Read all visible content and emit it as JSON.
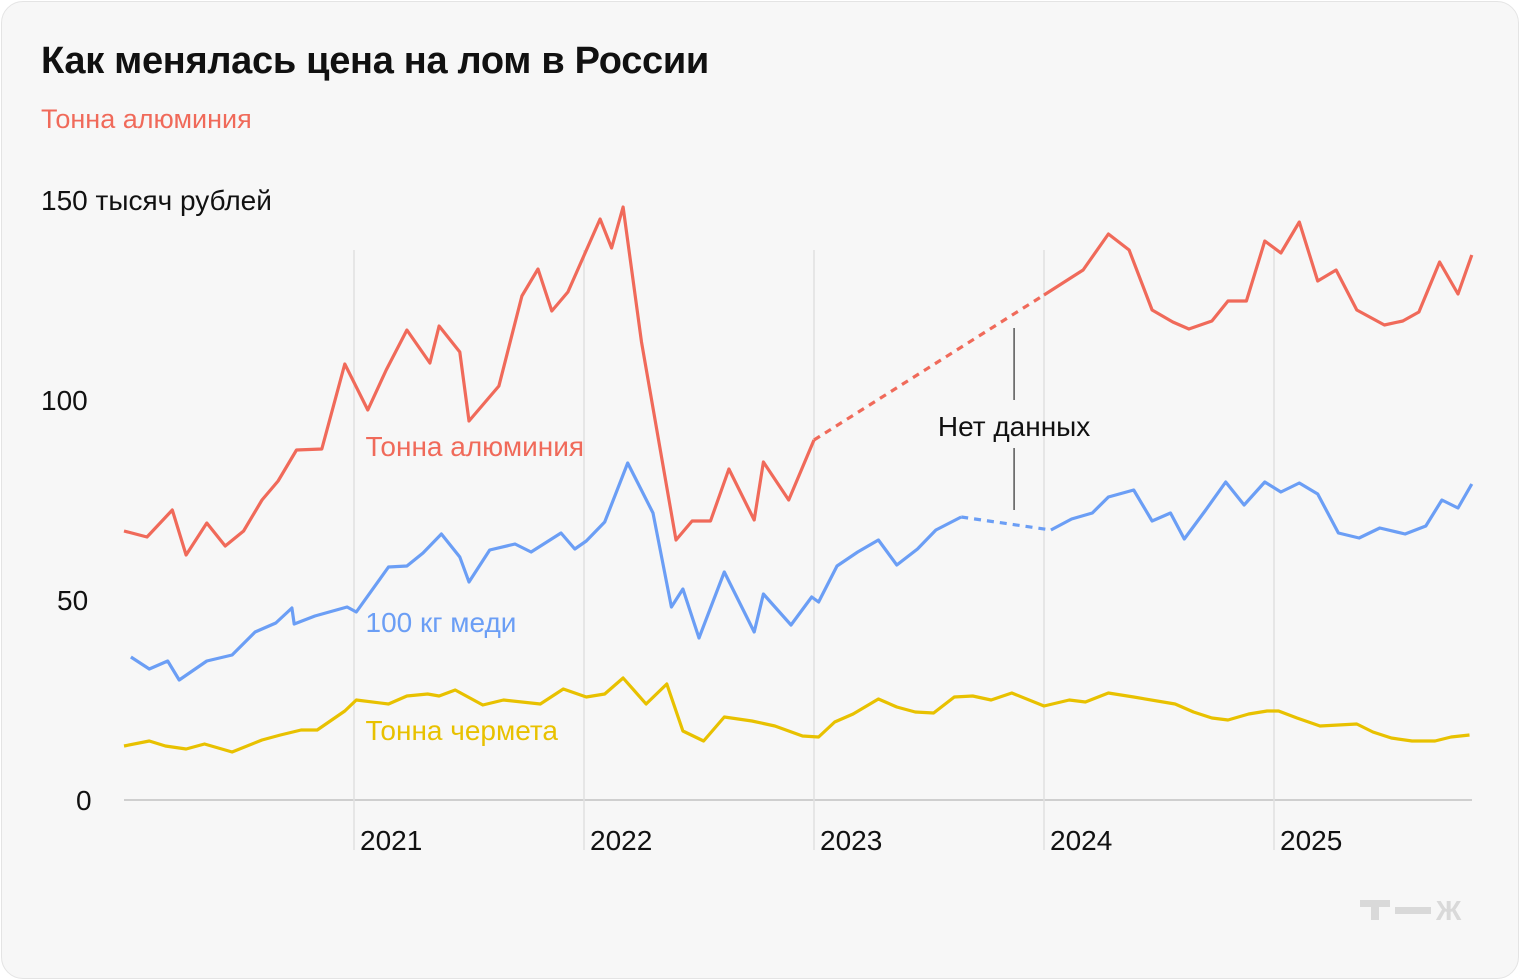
{
  "title": "Как менялась цена на лом в России",
  "subtitle": "Тонна алюминия",
  "logo": "Т—Ж",
  "chart_data": {
    "type": "line",
    "title": "Как менялась цена на лом в России",
    "ylabel": "150 тысяч рублей",
    "ylim": [
      0,
      150
    ],
    "xlim": [
      2020.0,
      2025.86
    ],
    "y_ticks": [
      {
        "value": 0,
        "label": "0"
      },
      {
        "value": 50,
        "label": "50"
      },
      {
        "value": 100,
        "label": "100"
      },
      {
        "value": 150,
        "label": "150 тысяч рублей"
      }
    ],
    "x_ticks": [
      {
        "value": 2021,
        "label": "2021"
      },
      {
        "value": 2022,
        "label": "2022"
      },
      {
        "value": 2023,
        "label": "2023"
      },
      {
        "value": 2024,
        "label": "2024"
      },
      {
        "value": 2025,
        "label": "2025"
      }
    ],
    "grid": "vertical",
    "annotation": {
      "text": "Нет данных",
      "x": 2023.87
    },
    "series": [
      {
        "name": "Тонна алюминия",
        "color": "#f06a5a",
        "label_at": [
          2021.05,
          86
        ],
        "segments": [
          [
            [
              2020.0,
              67.25
            ],
            [
              2020.1,
              65.75
            ],
            [
              2020.21,
              72.5
            ],
            [
              2020.27,
              61.25
            ],
            [
              2020.36,
              69.25
            ],
            [
              2020.44,
              63.5
            ],
            [
              2020.52,
              67.25
            ],
            [
              2020.6,
              75
            ],
            [
              2020.67,
              79.75
            ],
            [
              2020.75,
              87.5
            ],
            [
              2020.86,
              87.75
            ],
            [
              2020.96,
              109
            ],
            [
              2021.06,
              97.5
            ],
            [
              2021.14,
              107.5
            ],
            [
              2021.23,
              117.5
            ],
            [
              2021.33,
              109.25
            ],
            [
              2021.37,
              118.5
            ],
            [
              2021.46,
              112
            ],
            [
              2021.5,
              94.75
            ],
            [
              2021.63,
              103.5
            ],
            [
              2021.73,
              126
            ],
            [
              2021.8,
              132.75
            ],
            [
              2021.86,
              122.25
            ],
            [
              2021.93,
              127
            ],
            [
              2022.07,
              145.25
            ],
            [
              2022.12,
              138
            ],
            [
              2022.17,
              148.25
            ],
            [
              2022.25,
              114.5
            ],
            [
              2022.4,
              65
            ],
            [
              2022.47,
              69.75
            ],
            [
              2022.55,
              69.75
            ],
            [
              2022.63,
              82.75
            ],
            [
              2022.74,
              70
            ],
            [
              2022.78,
              84.5
            ],
            [
              2022.89,
              75
            ],
            [
              2023.0,
              90
            ]
          ],
          [
            [
              2024.0,
              126.25
            ],
            [
              2024.17,
              132.5
            ],
            [
              2024.28,
              141.5
            ],
            [
              2024.37,
              137.5
            ],
            [
              2024.47,
              122.5
            ],
            [
              2024.56,
              119.5
            ],
            [
              2024.63,
              117.75
            ],
            [
              2024.73,
              119.75
            ],
            [
              2024.8,
              124.75
            ],
            [
              2024.88,
              124.75
            ],
            [
              2024.96,
              139.75
            ],
            [
              2025.03,
              136.75
            ],
            [
              2025.11,
              144.5
            ],
            [
              2025.19,
              129.75
            ],
            [
              2025.27,
              132.5
            ],
            [
              2025.36,
              122.5
            ],
            [
              2025.48,
              118.75
            ],
            [
              2025.56,
              119.75
            ],
            [
              2025.63,
              122
            ],
            [
              2025.72,
              134.5
            ],
            [
              2025.8,
              126.5
            ],
            [
              2025.86,
              136.25
            ]
          ]
        ]
      },
      {
        "name": "100 кг меди",
        "color": "#6b9ef5",
        "label_at": [
          2021.05,
          42
        ],
        "segments": [
          [
            [
              2020.03,
              35.75
            ],
            [
              2020.11,
              32.75
            ],
            [
              2020.19,
              34.75
            ],
            [
              2020.24,
              30
            ],
            [
              2020.36,
              34.75
            ],
            [
              2020.47,
              36.25
            ],
            [
              2020.57,
              42
            ],
            [
              2020.66,
              44.25
            ],
            [
              2020.73,
              48
            ],
            [
              2020.74,
              44
            ],
            [
              2020.83,
              46
            ],
            [
              2020.97,
              48.25
            ],
            [
              2021.01,
              47
            ],
            [
              2021.15,
              58.25
            ],
            [
              2021.23,
              58.5
            ],
            [
              2021.3,
              61.75
            ],
            [
              2021.38,
              66.5
            ],
            [
              2021.46,
              60.75
            ],
            [
              2021.5,
              54.5
            ],
            [
              2021.59,
              62.5
            ],
            [
              2021.7,
              64
            ],
            [
              2021.77,
              62
            ],
            [
              2021.9,
              66.75
            ],
            [
              2021.96,
              62.75
            ],
            [
              2022.01,
              64.75
            ],
            [
              2022.09,
              69.5
            ],
            [
              2022.19,
              84.25
            ],
            [
              2022.3,
              71.75
            ],
            [
              2022.38,
              48.25
            ],
            [
              2022.43,
              52.75
            ],
            [
              2022.5,
              40.5
            ],
            [
              2022.61,
              57
            ],
            [
              2022.74,
              42
            ],
            [
              2022.78,
              51.5
            ],
            [
              2022.9,
              43.75
            ],
            [
              2022.99,
              50.75
            ],
            [
              2023.02,
              49.5
            ],
            [
              2023.1,
              58.5
            ],
            [
              2023.19,
              62
            ],
            [
              2023.28,
              65
            ],
            [
              2023.36,
              58.75
            ],
            [
              2023.45,
              62.75
            ],
            [
              2023.53,
              67.5
            ],
            [
              2023.64,
              70.75
            ]
          ],
          [
            [
              2024.03,
              67.5
            ],
            [
              2024.12,
              70.25
            ],
            [
              2024.21,
              71.75
            ],
            [
              2024.28,
              75.75
            ],
            [
              2024.39,
              77.5
            ],
            [
              2024.47,
              69.75
            ],
            [
              2024.55,
              71.75
            ],
            [
              2024.61,
              65.25
            ],
            [
              2024.7,
              72.25
            ],
            [
              2024.79,
              79.5
            ],
            [
              2024.87,
              73.75
            ],
            [
              2024.96,
              79.5
            ],
            [
              2025.03,
              77
            ],
            [
              2025.11,
              79.25
            ],
            [
              2025.19,
              76.5
            ],
            [
              2025.28,
              66.75
            ],
            [
              2025.37,
              65.5
            ],
            [
              2025.46,
              68
            ],
            [
              2025.57,
              66.5
            ],
            [
              2025.66,
              68.5
            ],
            [
              2025.73,
              75
            ],
            [
              2025.8,
              73
            ],
            [
              2025.86,
              79
            ]
          ]
        ]
      },
      {
        "name": "Тонна чермета",
        "color": "#e8c100",
        "label_at": [
          2021.05,
          15
        ],
        "segments": [
          [
            [
              2020.0,
              13.5
            ],
            [
              2020.11,
              14.75
            ],
            [
              2020.18,
              13.5
            ],
            [
              2020.27,
              12.75
            ],
            [
              2020.35,
              14
            ],
            [
              2020.47,
              12
            ],
            [
              2020.6,
              15
            ],
            [
              2020.68,
              16.25
            ],
            [
              2020.77,
              17.5
            ],
            [
              2020.84,
              17.5
            ],
            [
              2020.96,
              22.25
            ],
            [
              2021.01,
              25
            ],
            [
              2021.15,
              24
            ],
            [
              2021.23,
              26
            ],
            [
              2021.32,
              26.5
            ],
            [
              2021.37,
              26
            ],
            [
              2021.44,
              27.5
            ],
            [
              2021.56,
              23.75
            ],
            [
              2021.65,
              25
            ],
            [
              2021.81,
              24
            ],
            [
              2021.91,
              27.75
            ],
            [
              2022.01,
              25.75
            ],
            [
              2022.09,
              26.5
            ],
            [
              2022.17,
              30.5
            ],
            [
              2022.27,
              24
            ],
            [
              2022.36,
              29
            ],
            [
              2022.43,
              17.25
            ],
            [
              2022.52,
              14.75
            ],
            [
              2022.61,
              20.75
            ],
            [
              2022.73,
              19.75
            ],
            [
              2022.83,
              18.5
            ],
            [
              2022.95,
              16
            ],
            [
              2023.02,
              15.75
            ],
            [
              2023.09,
              19.5
            ],
            [
              2023.17,
              21.5
            ],
            [
              2023.28,
              25.25
            ],
            [
              2023.36,
              23.25
            ],
            [
              2023.44,
              22
            ],
            [
              2023.52,
              21.75
            ],
            [
              2023.61,
              25.75
            ],
            [
              2023.69,
              26
            ],
            [
              2023.77,
              25
            ],
            [
              2023.86,
              26.75
            ],
            [
              2024.0,
              23.5
            ],
            [
              2024.11,
              25
            ],
            [
              2024.18,
              24.5
            ],
            [
              2024.28,
              26.75
            ],
            [
              2024.39,
              25.75
            ],
            [
              2024.57,
              24
            ],
            [
              2024.65,
              22
            ],
            [
              2024.73,
              20.5
            ],
            [
              2024.8,
              20
            ],
            [
              2024.89,
              21.5
            ],
            [
              2024.97,
              22.25
            ],
            [
              2025.02,
              22.25
            ],
            [
              2025.1,
              20.5
            ],
            [
              2025.2,
              18.5
            ],
            [
              2025.36,
              19
            ],
            [
              2025.43,
              17
            ],
            [
              2025.51,
              15.5
            ],
            [
              2025.6,
              14.75
            ],
            [
              2025.7,
              14.75
            ],
            [
              2025.77,
              15.75
            ],
            [
              2025.85,
              16.25
            ]
          ]
        ]
      }
    ]
  }
}
